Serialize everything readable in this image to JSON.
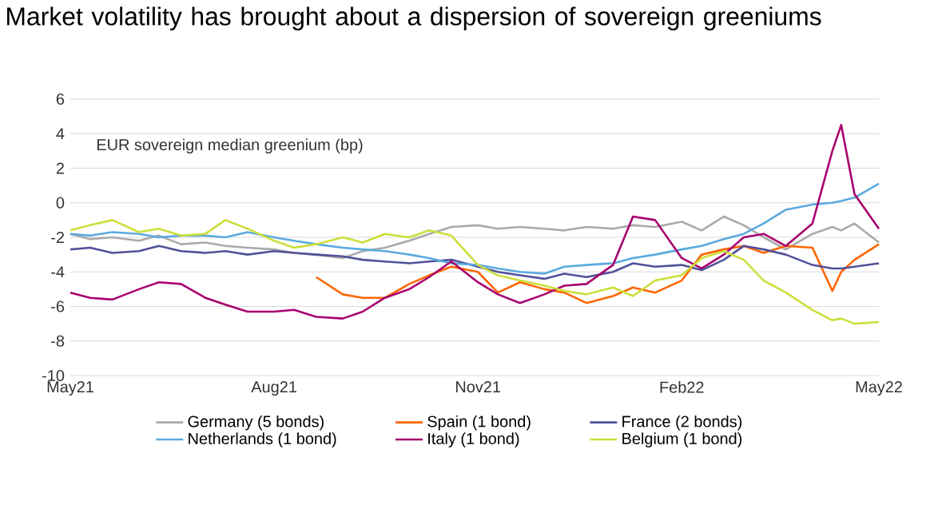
{
  "chart_data": {
    "type": "line",
    "title": "Market volatility has brought about a dispersion of sovereign greeniums",
    "ylabel": "EUR sovereign median greenium (bp)",
    "x": [
      "2021-05-01",
      "2021-05-10",
      "2021-05-20",
      "2021-06-01",
      "2021-06-10",
      "2021-06-20",
      "2021-07-01",
      "2021-07-10",
      "2021-07-20",
      "2021-08-01",
      "2021-08-10",
      "2021-08-20",
      "2021-09-01",
      "2021-09-10",
      "2021-09-20",
      "2021-10-01",
      "2021-10-10",
      "2021-10-20",
      "2021-11-01",
      "2021-11-10",
      "2021-11-20",
      "2021-12-01",
      "2021-12-10",
      "2021-12-20",
      "2022-01-01",
      "2022-01-10",
      "2022-01-20",
      "2022-02-01",
      "2022-02-10",
      "2022-02-20",
      "2022-03-01",
      "2022-03-10",
      "2022-03-20",
      "2022-04-01",
      "2022-04-10",
      "2022-04-14",
      "2022-04-20",
      "2022-05-01"
    ],
    "series": [
      {
        "name": "Germany (5 bonds)",
        "color": "#aaaaaa",
        "values": [
          -1.8,
          -2.1,
          -2.0,
          -2.2,
          -1.9,
          -2.4,
          -2.3,
          -2.5,
          -2.6,
          -2.7,
          -2.9,
          -3.0,
          -3.2,
          -2.8,
          -2.6,
          -2.2,
          -1.8,
          -1.4,
          -1.3,
          -1.5,
          -1.4,
          -1.5,
          -1.6,
          -1.4,
          -1.5,
          -1.3,
          -1.4,
          -1.1,
          -1.6,
          -0.8,
          -1.3,
          -2.0,
          -2.7,
          -1.8,
          -1.4,
          -1.6,
          -1.2,
          -2.3
        ]
      },
      {
        "name": "Spain (1 bond)",
        "color": "#ff6600",
        "values": [
          null,
          null,
          null,
          null,
          null,
          null,
          null,
          null,
          null,
          null,
          null,
          -4.3,
          -5.3,
          -5.5,
          -5.5,
          -4.7,
          -4.2,
          -3.7,
          -4.0,
          -5.2,
          -4.6,
          -5.0,
          -5.2,
          -5.8,
          -5.4,
          -4.9,
          -5.2,
          -4.5,
          -3.0,
          -2.7,
          -2.5,
          -2.9,
          -2.5,
          -2.6,
          -5.1,
          -4.0,
          -3.3,
          -2.4
        ]
      },
      {
        "name": "France (2 bonds)",
        "color": "#525199",
        "values": [
          -2.7,
          -2.6,
          -2.9,
          -2.8,
          -2.5,
          -2.8,
          -2.9,
          -2.8,
          -3.0,
          -2.8,
          -2.9,
          -3.0,
          -3.1,
          -3.3,
          -3.4,
          -3.5,
          -3.4,
          -3.3,
          -3.7,
          -4.0,
          -4.2,
          -4.4,
          -4.1,
          -4.3,
          -4.0,
          -3.5,
          -3.7,
          -3.6,
          -3.9,
          -3.3,
          -2.5,
          -2.7,
          -3.0,
          -3.6,
          -3.8,
          -3.8,
          -3.7,
          -3.5
        ]
      },
      {
        "name": "Netherlands (1 bond)",
        "color": "#5aaae0",
        "values": [
          -1.8,
          -1.9,
          -1.7,
          -1.8,
          -2.0,
          -1.9,
          -1.9,
          -2.0,
          -1.7,
          -2.0,
          -2.2,
          -2.4,
          -2.6,
          -2.7,
          -2.8,
          -3.0,
          -3.2,
          -3.5,
          -3.6,
          -3.8,
          -4.0,
          -4.1,
          -3.7,
          -3.6,
          -3.5,
          -3.2,
          -3.0,
          -2.7,
          -2.5,
          -2.1,
          -1.8,
          -1.2,
          -0.4,
          -0.1,
          0.0,
          0.1,
          0.3,
          1.1
        ]
      },
      {
        "name": "Italy (1 bond)",
        "color": "#a8006e",
        "values": [
          -5.2,
          -5.5,
          -5.6,
          -5.0,
          -4.6,
          -4.7,
          -5.5,
          -5.9,
          -6.3,
          -6.3,
          -6.2,
          -6.6,
          -6.7,
          -6.3,
          -5.5,
          -5.0,
          -4.3,
          -3.4,
          -4.6,
          -5.3,
          -5.8,
          -5.3,
          -4.8,
          -4.7,
          -3.6,
          -0.8,
          -1.0,
          -3.2,
          -3.8,
          -3.0,
          -2.0,
          -1.8,
          -2.5,
          -1.2,
          3.0,
          4.5,
          0.5,
          -1.5
        ]
      },
      {
        "name": "Belgium (1 bond)",
        "color": "#cdde3a",
        "values": [
          -1.6,
          -1.3,
          -1.0,
          -1.7,
          -1.5,
          -1.9,
          -1.8,
          -1.0,
          -1.5,
          -2.2,
          -2.6,
          -2.4,
          -2.0,
          -2.3,
          -1.8,
          -2.0,
          -1.6,
          -1.9,
          -3.6,
          -4.2,
          -4.5,
          -4.8,
          -5.1,
          -5.3,
          -4.9,
          -5.4,
          -4.5,
          -4.2,
          -3.2,
          -2.8,
          -3.3,
          -4.5,
          -5.2,
          -6.2,
          -6.8,
          -6.7,
          -7.0,
          -6.9
        ]
      }
    ],
    "xlim": [
      "2021-05-01",
      "2022-05-01"
    ],
    "xticks": [
      {
        "value": "2021-05-01",
        "label": "May21"
      },
      {
        "value": "2021-08-01",
        "label": "Aug21"
      },
      {
        "value": "2021-11-01",
        "label": "Nov21"
      },
      {
        "value": "2022-02-01",
        "label": "Feb22"
      },
      {
        "value": "2022-05-01",
        "label": "May22"
      }
    ],
    "ylim": [
      -10,
      6
    ],
    "yticks": [
      -10,
      -8,
      -6,
      -4,
      -2,
      0,
      2,
      4,
      6
    ],
    "grid": "y",
    "legend": "bottom",
    "line_style": "solid",
    "marker": "none"
  }
}
